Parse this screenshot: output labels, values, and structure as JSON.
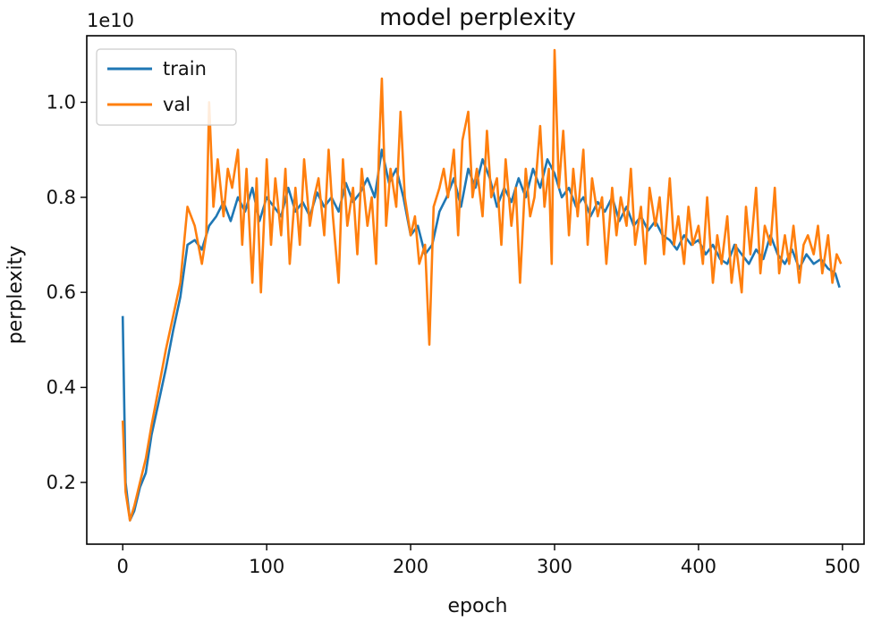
{
  "chart_data": {
    "type": "line",
    "title": "model perplexity",
    "xlabel": "epoch",
    "ylabel": "perplexity",
    "y_scale_label": "1e10",
    "xlim": [
      -25,
      515
    ],
    "ylim": [
      0.07,
      1.14
    ],
    "x_ticks": [
      0,
      100,
      200,
      300,
      400,
      500
    ],
    "x_tick_labels": [
      "0",
      "100",
      "200",
      "300",
      "400",
      "500"
    ],
    "y_ticks": [
      0.2,
      0.4,
      0.6,
      0.8,
      1.0
    ],
    "y_tick_labels": [
      "0.2",
      "0.4",
      "0.6",
      "0.8",
      "1.0"
    ],
    "legend_position": "top-left",
    "series": [
      {
        "name": "train",
        "color": "#1f77b4",
        "x": [
          0,
          2,
          5,
          8,
          12,
          16,
          20,
          25,
          30,
          35,
          40,
          45,
          50,
          55,
          60,
          65,
          70,
          75,
          80,
          85,
          90,
          95,
          100,
          105,
          110,
          115,
          120,
          125,
          130,
          135,
          140,
          145,
          150,
          155,
          160,
          165,
          170,
          175,
          180,
          185,
          190,
          195,
          200,
          205,
          210,
          215,
          220,
          225,
          230,
          235,
          240,
          245,
          250,
          255,
          260,
          265,
          270,
          275,
          280,
          285,
          290,
          295,
          300,
          305,
          310,
          315,
          320,
          325,
          330,
          335,
          340,
          345,
          350,
          355,
          360,
          365,
          370,
          375,
          380,
          385,
          390,
          395,
          400,
          405,
          410,
          415,
          420,
          425,
          430,
          435,
          440,
          445,
          450,
          455,
          460,
          465,
          470,
          475,
          480,
          485,
          490,
          495,
          498
        ],
        "y": [
          0.55,
          0.2,
          0.12,
          0.14,
          0.19,
          0.22,
          0.3,
          0.37,
          0.44,
          0.52,
          0.59,
          0.7,
          0.71,
          0.69,
          0.74,
          0.76,
          0.79,
          0.75,
          0.8,
          0.77,
          0.82,
          0.75,
          0.8,
          0.78,
          0.76,
          0.82,
          0.77,
          0.79,
          0.76,
          0.81,
          0.78,
          0.8,
          0.77,
          0.83,
          0.79,
          0.81,
          0.84,
          0.8,
          0.9,
          0.83,
          0.86,
          0.8,
          0.72,
          0.74,
          0.68,
          0.7,
          0.77,
          0.8,
          0.84,
          0.78,
          0.86,
          0.82,
          0.88,
          0.84,
          0.78,
          0.82,
          0.79,
          0.84,
          0.8,
          0.86,
          0.82,
          0.88,
          0.85,
          0.8,
          0.82,
          0.78,
          0.8,
          0.76,
          0.79,
          0.77,
          0.8,
          0.75,
          0.78,
          0.74,
          0.76,
          0.73,
          0.75,
          0.72,
          0.71,
          0.69,
          0.72,
          0.7,
          0.71,
          0.68,
          0.7,
          0.67,
          0.66,
          0.7,
          0.68,
          0.66,
          0.69,
          0.67,
          0.72,
          0.68,
          0.66,
          0.69,
          0.65,
          0.68,
          0.66,
          0.67,
          0.65,
          0.64,
          0.61
        ]
      },
      {
        "name": "val",
        "color": "#ff7f0e",
        "x": [
          0,
          2,
          5,
          8,
          12,
          16,
          20,
          25,
          30,
          35,
          40,
          45,
          50,
          55,
          58,
          60,
          63,
          66,
          70,
          73,
          76,
          80,
          83,
          86,
          90,
          93,
          96,
          100,
          103,
          106,
          110,
          113,
          116,
          120,
          123,
          126,
          130,
          133,
          136,
          140,
          143,
          146,
          150,
          153,
          156,
          160,
          163,
          166,
          170,
          173,
          176,
          178,
          180,
          183,
          186,
          190,
          193,
          196,
          200,
          203,
          206,
          210,
          213,
          216,
          220,
          223,
          226,
          230,
          233,
          236,
          240,
          243,
          246,
          250,
          253,
          256,
          260,
          263,
          266,
          270,
          273,
          276,
          280,
          283,
          286,
          290,
          293,
          296,
          298,
          300,
          303,
          306,
          310,
          313,
          316,
          320,
          323,
          326,
          330,
          333,
          336,
          340,
          343,
          346,
          350,
          353,
          356,
          360,
          363,
          366,
          370,
          373,
          376,
          380,
          383,
          386,
          390,
          393,
          396,
          400,
          403,
          406,
          410,
          413,
          416,
          420,
          423,
          426,
          430,
          433,
          436,
          440,
          443,
          446,
          450,
          453,
          456,
          460,
          463,
          466,
          470,
          473,
          476,
          480,
          483,
          486,
          490,
          493,
          496,
          499
        ],
        "y": [
          0.33,
          0.18,
          0.12,
          0.15,
          0.2,
          0.25,
          0.32,
          0.4,
          0.48,
          0.55,
          0.62,
          0.78,
          0.74,
          0.66,
          0.72,
          1.0,
          0.78,
          0.88,
          0.76,
          0.86,
          0.82,
          0.9,
          0.7,
          0.86,
          0.62,
          0.84,
          0.6,
          0.88,
          0.7,
          0.84,
          0.72,
          0.86,
          0.66,
          0.82,
          0.7,
          0.88,
          0.74,
          0.8,
          0.84,
          0.72,
          0.9,
          0.76,
          0.62,
          0.88,
          0.74,
          0.82,
          0.68,
          0.86,
          0.74,
          0.8,
          0.66,
          0.9,
          1.05,
          0.74,
          0.86,
          0.78,
          0.98,
          0.8,
          0.72,
          0.76,
          0.66,
          0.7,
          0.49,
          0.78,
          0.82,
          0.86,
          0.8,
          0.9,
          0.72,
          0.92,
          0.98,
          0.8,
          0.86,
          0.76,
          0.94,
          0.8,
          0.84,
          0.7,
          0.88,
          0.74,
          0.82,
          0.62,
          0.86,
          0.76,
          0.8,
          0.95,
          0.78,
          0.86,
          0.66,
          1.11,
          0.82,
          0.94,
          0.72,
          0.86,
          0.76,
          0.9,
          0.7,
          0.84,
          0.76,
          0.8,
          0.66,
          0.82,
          0.72,
          0.8,
          0.74,
          0.86,
          0.7,
          0.78,
          0.66,
          0.82,
          0.74,
          0.8,
          0.68,
          0.84,
          0.7,
          0.76,
          0.66,
          0.78,
          0.7,
          0.74,
          0.66,
          0.8,
          0.62,
          0.72,
          0.66,
          0.76,
          0.62,
          0.7,
          0.6,
          0.78,
          0.68,
          0.82,
          0.64,
          0.74,
          0.7,
          0.82,
          0.64,
          0.72,
          0.66,
          0.74,
          0.62,
          0.7,
          0.72,
          0.68,
          0.74,
          0.64,
          0.72,
          0.62,
          0.68,
          0.66
        ]
      }
    ]
  }
}
